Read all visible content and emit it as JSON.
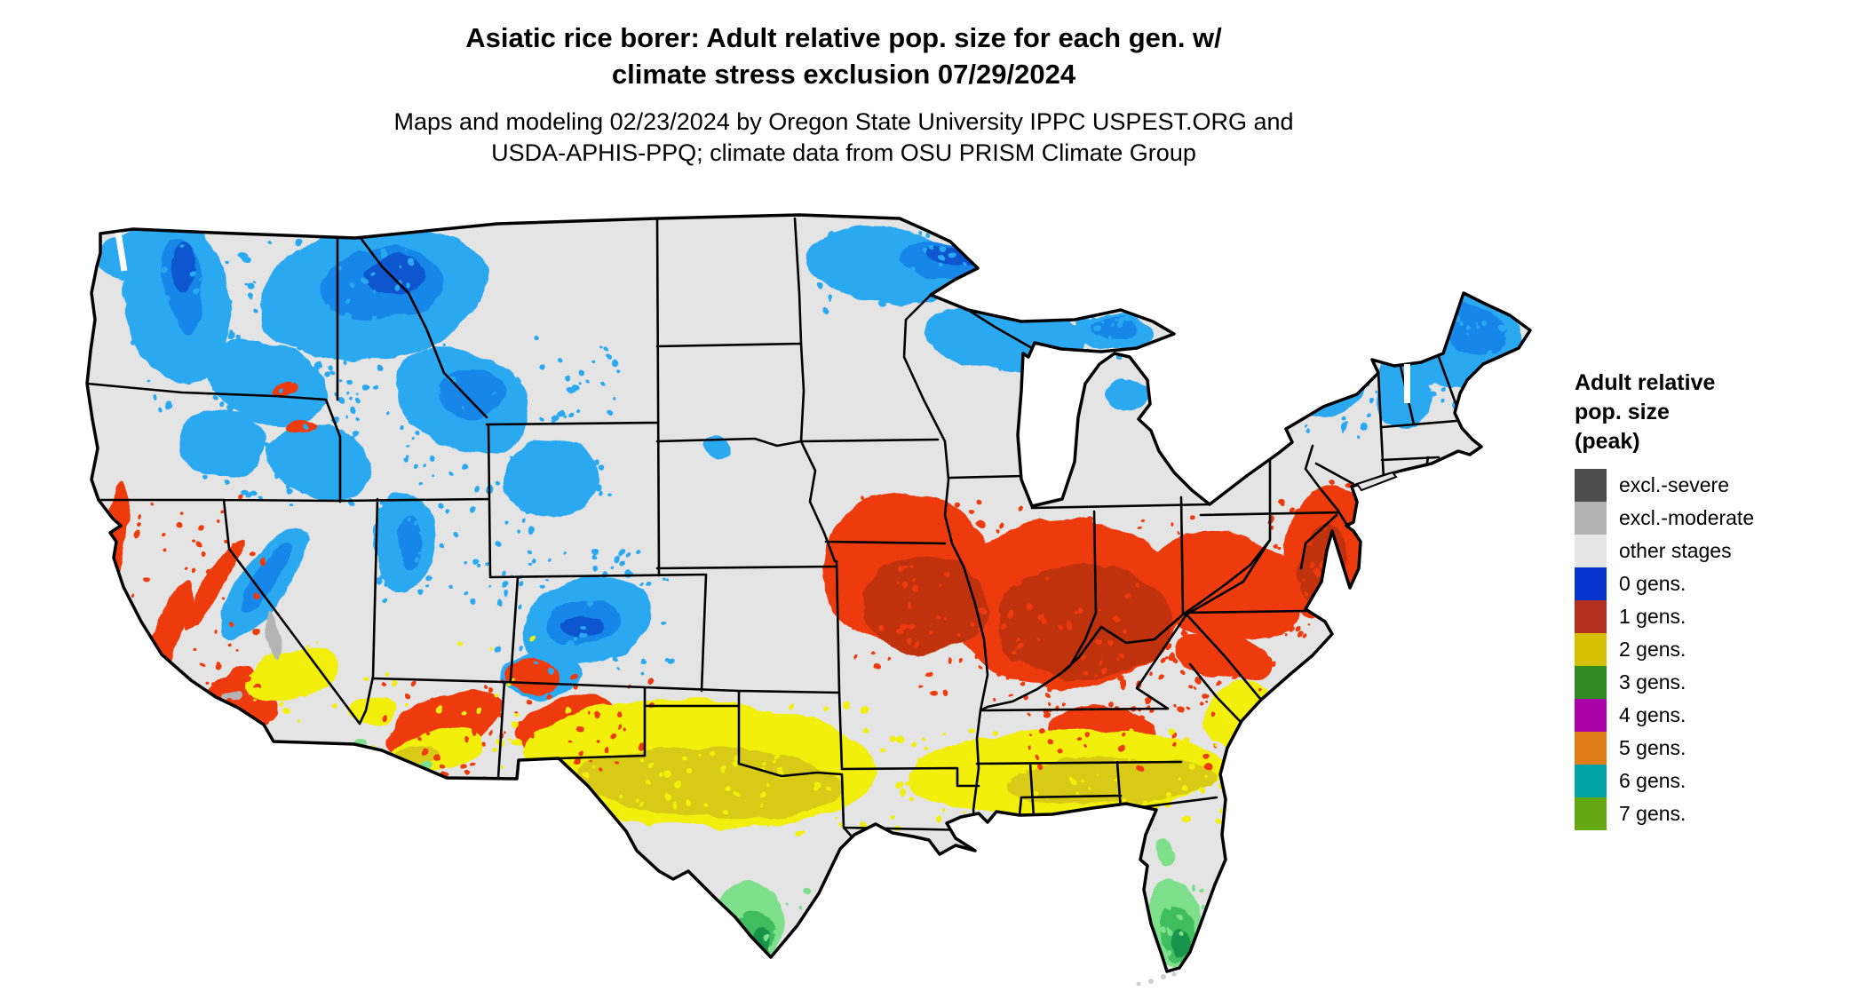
{
  "page": {
    "background_color": "#ffffff"
  },
  "title": {
    "line1": "Asiatic rice borer: Adult relative pop. size for each gen. w/",
    "line2": "climate stress exclusion 07/29/2024"
  },
  "subtitle": {
    "line1": "Maps and modeling 02/23/2024 by Oregon State University IPPC USPEST.ORG and",
    "line2": "USDA-APHIS-PPQ; climate data from OSU PRISM Climate Group"
  },
  "legend": {
    "title_lines": [
      "Adult relative",
      "pop. size",
      "(peak)"
    ],
    "items": [
      {
        "label": "excl.-severe",
        "color": "#4d4d4d"
      },
      {
        "label": "excl.-moderate",
        "color": "#b3b3b3"
      },
      {
        "label": "other stages",
        "color": "#e6e6e6"
      },
      {
        "label": "0 gens.",
        "color": "#0733cf"
      },
      {
        "label": "1 gens.",
        "color": "#b2301c"
      },
      {
        "label": "2 gens.",
        "color": "#d6be00"
      },
      {
        "label": "3 gens.",
        "color": "#2e8b22"
      },
      {
        "label": "4 gens.",
        "color": "#aa00aa"
      },
      {
        "label": "5 gens.",
        "color": "#e07c18"
      },
      {
        "label": "6 gens.",
        "color": "#00a3a8"
      },
      {
        "label": "7 gens.",
        "color": "#64a812"
      }
    ]
  },
  "map": {
    "kind": "US continental choropleth raster (Lambert-style), black state borders on white ocean",
    "base_land_color": "#e4e4e4",
    "border_color": "#000000",
    "raster_palette": {
      "blue_light": "#2aa9f1",
      "blue_mid": "#1286e8",
      "blue_dark": "#0b57d0",
      "red_bright": "#ee3a0e",
      "red_dark": "#c03010",
      "yellow_bright": "#f2ef0a",
      "yellow_mustard": "#d8ca12",
      "green_light": "#7fe08c",
      "green_mid": "#3fbd5f",
      "green_dark": "#149448",
      "exclusion_moderate_gray": "#b4b4b4"
    },
    "regions": [
      {
        "class": "0 gens (blue)",
        "areas": "Pacific Northwest & Cascades, northern Rockies (ID/MT/WY), Sierra Nevada, Wasatch, Colorado Rockies, northern Minnesota/Wisconsin/Upper Michigan, Adirondacks, northern New England and Maine"
      },
      {
        "class": "1 gens (red)",
        "areas": "California coast ranges & Sierra foothills, Arizona-New Mexico highlands, central belt from eastern Kansas/Missouri/southern Iowa through Illinois, Indiana, Kentucky, Tennessee and Ohio valley to Virginia and the mid-Atlantic coast (NJ/DE/MD)"
      },
      {
        "class": "2 gens (yellow)",
        "areas": "southern belt: central Texas through Louisiana, southern Mississippi/Alabama/Georgia, coastal South Carolina, Florida panhandle; low deserts of SE California, southern Nevada and Arizona"
      },
      {
        "class": "3 gens (green)",
        "areas": "southern tip of Texas (Rio Grande valley) and South Florida; small spots near Yuma/Phoenix and central Florida"
      },
      {
        "class": "other stages (light gray)",
        "areas": "remaining interior plains, valleys and coastal plain"
      },
      {
        "class": "excl.-moderate (gray)",
        "areas": "tiny slivers near Death Valley / SE California"
      }
    ]
  }
}
